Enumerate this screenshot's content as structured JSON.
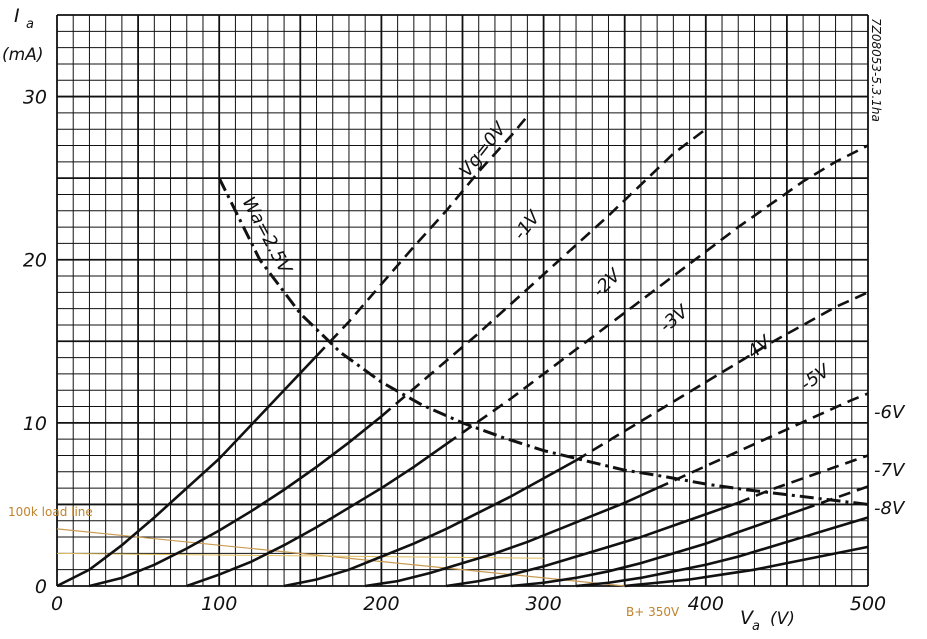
{
  "chart_data": {
    "type": "line",
    "xlabel": "V",
    "xlabel_sub": "a",
    "xunit": "(V)",
    "ylabel": "I",
    "ylabel_sub": "a",
    "yunit": "(mA)",
    "xlim": [
      0,
      500
    ],
    "ylim": [
      0,
      35
    ],
    "x_ticks": [
      "0",
      "100",
      "200",
      "300",
      "400",
      "500"
    ],
    "y_ticks": [
      "0",
      "10",
      "20",
      "30"
    ],
    "grid": true,
    "code_label": "7Z08053-5.3.1ha",
    "series": [
      {
        "name": "Vg=0V",
        "x": [
          0,
          20,
          40,
          60,
          80,
          100,
          120,
          140,
          160,
          180,
          200,
          220,
          240,
          260,
          280,
          290
        ],
        "y": [
          0,
          1.0,
          2.5,
          4.2,
          6.0,
          7.8,
          9.9,
          12.0,
          14.1,
          16.2,
          18.5,
          20.8,
          23.0,
          25.4,
          27.6,
          28.8
        ]
      },
      {
        "name": "-1V",
        "x": [
          20,
          40,
          60,
          80,
          100,
          120,
          140,
          160,
          180,
          200,
          220,
          240,
          260,
          280,
          300,
          320,
          340,
          360,
          380,
          400
        ],
        "y": [
          0,
          0.5,
          1.3,
          2.3,
          3.4,
          4.6,
          5.9,
          7.3,
          8.8,
          10.4,
          12.1,
          13.8,
          15.5,
          17.3,
          19.1,
          20.9,
          22.7,
          24.6,
          26.5,
          28.0
        ]
      },
      {
        "name": "-2V",
        "x": [
          80,
          100,
          120,
          140,
          160,
          180,
          200,
          220,
          240,
          260,
          280,
          300,
          320,
          340,
          360,
          380,
          400,
          420,
          440,
          460,
          480,
          500
        ],
        "y": [
          0,
          0.7,
          1.5,
          2.5,
          3.6,
          4.8,
          6.0,
          7.3,
          8.7,
          10.1,
          11.5,
          13.0,
          14.5,
          16.0,
          17.5,
          19.0,
          20.5,
          22.0,
          23.4,
          24.8,
          26.0,
          27.0
        ]
      },
      {
        "name": "-3V",
        "x": [
          140,
          160,
          180,
          200,
          220,
          240,
          260,
          280,
          300,
          320,
          340,
          360,
          380,
          400,
          420,
          440,
          460,
          480,
          500
        ],
        "y": [
          0,
          0.4,
          1.0,
          1.8,
          2.6,
          3.5,
          4.5,
          5.5,
          6.6,
          7.7,
          8.9,
          10.1,
          11.3,
          12.5,
          13.7,
          14.9,
          16.0,
          17.1,
          18.0
        ]
      },
      {
        "name": "-4V",
        "x": [
          190,
          210,
          230,
          250,
          270,
          290,
          310,
          330,
          350,
          370,
          390,
          410,
          430,
          450,
          470,
          490,
          500
        ],
        "y": [
          0,
          0.3,
          0.8,
          1.4,
          2.0,
          2.7,
          3.5,
          4.3,
          5.1,
          6.0,
          6.9,
          7.8,
          8.7,
          9.6,
          10.5,
          11.4,
          11.8
        ]
      },
      {
        "name": "-5V",
        "x": [
          240,
          260,
          280,
          300,
          320,
          340,
          360,
          380,
          400,
          420,
          440,
          460,
          480,
          500
        ],
        "y": [
          0,
          0.3,
          0.7,
          1.2,
          1.8,
          2.4,
          3.0,
          3.7,
          4.4,
          5.1,
          5.9,
          6.6,
          7.3,
          8.0
        ]
      },
      {
        "name": "-6V",
        "x": [
          280,
          300,
          320,
          340,
          360,
          380,
          400,
          420,
          440,
          460,
          480,
          500
        ],
        "y": [
          0,
          0.2,
          0.5,
          0.9,
          1.4,
          2.0,
          2.6,
          3.3,
          4.0,
          4.7,
          5.4,
          6.1
        ]
      },
      {
        "name": "-7V",
        "x": [
          320,
          340,
          360,
          380,
          400,
          420,
          440,
          460,
          480,
          500
        ],
        "y": [
          0,
          0.2,
          0.5,
          0.9,
          1.3,
          1.8,
          2.4,
          3.0,
          3.6,
          4.2
        ]
      },
      {
        "name": "-8V",
        "x": [
          350,
          370,
          390,
          410,
          430,
          450,
          470,
          490,
          500
        ],
        "y": [
          0,
          0.2,
          0.4,
          0.7,
          1.0,
          1.4,
          1.8,
          2.2,
          2.4
        ]
      }
    ],
    "dissipation_curve": {
      "name": "Wa=2.5V",
      "x": [
        100,
        125,
        150,
        175,
        200,
        225,
        250,
        275,
        300,
        325,
        350,
        375,
        400,
        425,
        450,
        475,
        500
      ],
      "y": [
        25.0,
        20.0,
        16.7,
        14.3,
        12.5,
        11.1,
        10.0,
        9.1,
        8.3,
        7.7,
        7.1,
        6.7,
        6.25,
        5.9,
        5.6,
        5.3,
        5.0
      ]
    },
    "load_line": {
      "name": "100k load line",
      "x": [
        0,
        350
      ],
      "y": [
        3.5,
        0
      ]
    },
    "annotations": [
      "100k load line",
      "B+ 350V"
    ]
  }
}
